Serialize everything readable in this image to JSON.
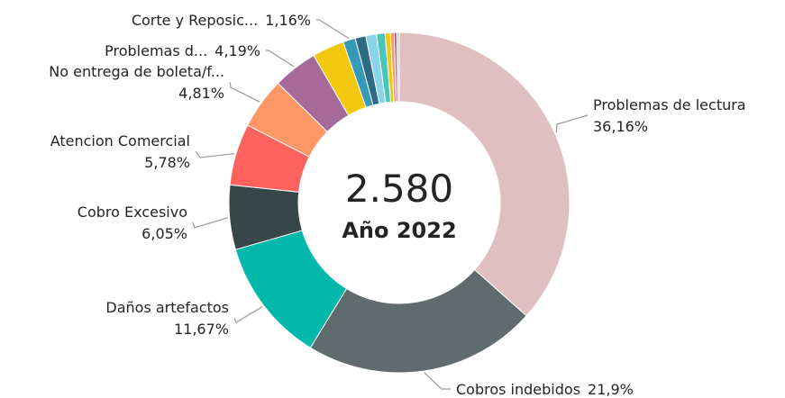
{
  "chart_data": {
    "type": "donut",
    "center_value": "2.580",
    "center_label": "Año 2022",
    "categories": [
      "Problemas de lectura",
      "Cobros indebidos",
      "Daños artefactos",
      "Cobro Excesivo",
      "Atencion Comercial",
      "No entrega de boleta/f...",
      "Problemas d...",
      null,
      "Corte y Reposic...",
      null,
      null,
      null,
      null,
      null,
      null,
      null
    ],
    "values": [
      36.16,
      21.9,
      11.67,
      6.05,
      5.78,
      4.81,
      4.19,
      3.0,
      1.16,
      1.0,
      1.0,
      0.8,
      0.5,
      0.35,
      0.25,
      0.22
    ],
    "value_labels": [
      "36,16%",
      "21,9%",
      "11,67%",
      "6,05%",
      "5,78%",
      "4,81%",
      "4,19%",
      null,
      "1,16%",
      null,
      null,
      null,
      null,
      null,
      null,
      null
    ],
    "colors": [
      "#dfbfbf",
      "#5f6b6d",
      "#01b8aa",
      "#374649",
      "#fd625e",
      "#fe9666",
      "#a66999",
      "#f2c80f",
      "#3599b8",
      "#2c6a86",
      "#8ad4eb",
      "#4ac5bb",
      "#f2c80f",
      "#fe9666",
      "#a66999",
      "#dfbfbf"
    ]
  }
}
